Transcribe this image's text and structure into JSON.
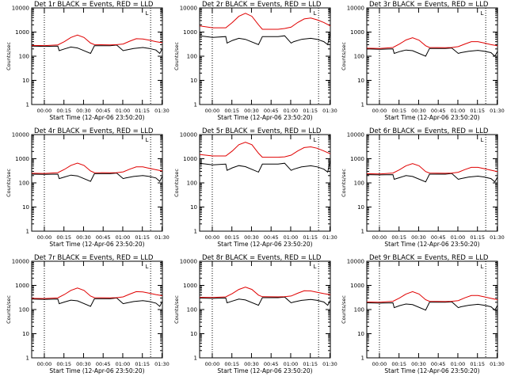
{
  "colors": {
    "events": "#000000",
    "lld": "#e00000",
    "background": "#ffffff"
  },
  "chart_data": [
    {
      "type": "line",
      "title": "Det 1r BLACK = Events, RED = LLD",
      "xlabel": "Start Time (12-Apr-06 23:50:20)",
      "ylabel": "Counts/sec",
      "xticks": [
        "00:00",
        "00:15",
        "00:30",
        "00:45",
        "01:00",
        "01:15",
        "01:30"
      ],
      "yticks": [
        "1",
        "10",
        "100",
        "1000",
        "10000"
      ],
      "yscale": "log",
      "ylim": [
        1,
        10000
      ],
      "xlim_minutes_after_start": [
        0,
        100
      ],
      "marker": "L",
      "series": [
        {
          "name": "Events",
          "x": [
            0,
            10,
            20,
            21,
            25,
            30,
            35,
            45,
            48,
            60,
            65,
            70,
            72,
            78,
            85,
            90,
            95,
            98,
            100
          ],
          "y": [
            260,
            255,
            260,
            170,
            200,
            240,
            220,
            130,
            270,
            270,
            290,
            170,
            180,
            210,
            230,
            210,
            180,
            130,
            210
          ]
        },
        {
          "name": "LLD",
          "x": [
            0,
            10,
            20,
            25,
            30,
            35,
            40,
            45,
            48,
            60,
            65,
            70,
            75,
            80,
            85,
            90,
            95,
            100
          ],
          "y": [
            280,
            275,
            295,
            400,
            600,
            750,
            600,
            350,
            300,
            295,
            300,
            320,
            420,
            530,
            520,
            460,
            400,
            360
          ]
        }
      ]
    },
    {
      "type": "line",
      "title": "Det 2r BLACK = Events, RED = LLD",
      "xlabel": "Start Time (12-Apr-06 23:50:20)",
      "ylabel": "Counts/sec",
      "xticks": [
        "00:00",
        "00:15",
        "00:30",
        "00:45",
        "01:00",
        "01:15",
        "01:30"
      ],
      "yticks": [
        "1",
        "10",
        "100",
        "1000",
        "10000"
      ],
      "yscale": "log",
      "ylim": [
        1,
        10000
      ],
      "xlim_minutes_after_start": [
        0,
        100
      ],
      "marker": "L",
      "series": [
        {
          "name": "Events",
          "x": [
            0,
            10,
            20,
            21,
            25,
            30,
            35,
            45,
            48,
            60,
            65,
            70,
            72,
            78,
            85,
            90,
            95,
            98,
            100
          ],
          "y": [
            700,
            600,
            650,
            350,
            450,
            550,
            500,
            300,
            650,
            650,
            700,
            350,
            400,
            500,
            550,
            500,
            400,
            300,
            1000
          ]
        },
        {
          "name": "LLD",
          "x": [
            0,
            10,
            20,
            25,
            30,
            35,
            40,
            45,
            48,
            60,
            65,
            70,
            75,
            80,
            85,
            90,
            95,
            100
          ],
          "y": [
            1800,
            1500,
            1500,
            2500,
            4500,
            6000,
            4500,
            2000,
            1300,
            1300,
            1400,
            1600,
            2500,
            3500,
            3800,
            3200,
            2500,
            1800
          ]
        }
      ]
    },
    {
      "type": "line",
      "title": "Det 3r BLACK = Events, RED = LLD",
      "xlabel": "Start Time (12-Apr-06 23:50:20)",
      "ylabel": "Counts/sec",
      "xticks": [
        "00:00",
        "00:15",
        "00:30",
        "00:45",
        "01:00",
        "01:15",
        "01:30"
      ],
      "yticks": [
        "1",
        "10",
        "100",
        "1000",
        "10000"
      ],
      "yscale": "log",
      "ylim": [
        1,
        10000
      ],
      "xlim_minutes_after_start": [
        0,
        100
      ],
      "marker": "L",
      "series": [
        {
          "name": "Events",
          "x": [
            0,
            10,
            20,
            21,
            25,
            30,
            35,
            45,
            48,
            60,
            65,
            70,
            72,
            78,
            85,
            90,
            95,
            98,
            100
          ],
          "y": [
            200,
            195,
            200,
            130,
            155,
            180,
            170,
            100,
            210,
            210,
            220,
            130,
            140,
            160,
            175,
            160,
            140,
            100,
            160
          ]
        },
        {
          "name": "LLD",
          "x": [
            0,
            10,
            20,
            25,
            30,
            35,
            40,
            45,
            48,
            60,
            65,
            70,
            75,
            80,
            85,
            90,
            95,
            100
          ],
          "y": [
            215,
            210,
            230,
            320,
            470,
            580,
            460,
            270,
            230,
            225,
            230,
            250,
            320,
            400,
            400,
            350,
            300,
            270
          ]
        }
      ]
    },
    {
      "type": "line",
      "title": "Det 4r BLACK = Events, RED = LLD",
      "xlabel": "Start Time (12-Apr-06 23:50:20)",
      "ylabel": "Counts/sec",
      "xticks": [
        "00:00",
        "00:15",
        "00:30",
        "00:45",
        "01:00",
        "01:15",
        "01:30"
      ],
      "yticks": [
        "1",
        "10",
        "100",
        "1000",
        "10000"
      ],
      "yscale": "log",
      "ylim": [
        1,
        10000
      ],
      "xlim_minutes_after_start": [
        0,
        100
      ],
      "marker": "L",
      "series": [
        {
          "name": "Events",
          "x": [
            0,
            10,
            20,
            21,
            25,
            30,
            35,
            45,
            48,
            60,
            65,
            70,
            72,
            78,
            85,
            90,
            95,
            98,
            100
          ],
          "y": [
            230,
            225,
            230,
            150,
            175,
            210,
            195,
            115,
            240,
            240,
            255,
            150,
            160,
            185,
            200,
            185,
            160,
            115,
            190
          ]
        },
        {
          "name": "LLD",
          "x": [
            0,
            10,
            20,
            25,
            30,
            35,
            40,
            45,
            48,
            60,
            65,
            70,
            75,
            80,
            85,
            90,
            95,
            100
          ],
          "y": [
            250,
            245,
            265,
            360,
            530,
            660,
            530,
            310,
            265,
            260,
            265,
            285,
            370,
            460,
            460,
            400,
            350,
            310
          ]
        }
      ]
    },
    {
      "type": "line",
      "title": "Det 5r BLACK = Events, RED = LLD",
      "xlabel": "Start Time (12-Apr-06 23:50:20)",
      "ylabel": "Counts/sec",
      "xticks": [
        "00:00",
        "00:15",
        "00:30",
        "00:45",
        "01:00",
        "01:15",
        "01:30"
      ],
      "yticks": [
        "1",
        "10",
        "100",
        "1000",
        "10000"
      ],
      "yscale": "log",
      "ylim": [
        1,
        10000
      ],
      "xlim_minutes_after_start": [
        0,
        100
      ],
      "marker": "L",
      "series": [
        {
          "name": "Events",
          "x": [
            0,
            10,
            20,
            21,
            25,
            30,
            35,
            45,
            48,
            60,
            65,
            70,
            72,
            78,
            85,
            90,
            95,
            98,
            100
          ],
          "y": [
            650,
            560,
            600,
            330,
            420,
            520,
            470,
            280,
            600,
            600,
            650,
            330,
            370,
            460,
            510,
            460,
            370,
            280,
            900
          ]
        },
        {
          "name": "LLD",
          "x": [
            0,
            10,
            20,
            25,
            30,
            35,
            40,
            45,
            48,
            60,
            65,
            70,
            75,
            80,
            85,
            90,
            95,
            100
          ],
          "y": [
            1500,
            1300,
            1300,
            2100,
            3800,
            4800,
            3800,
            1700,
            1150,
            1150,
            1200,
            1400,
            2100,
            2900,
            3100,
            2700,
            2100,
            1600
          ]
        }
      ]
    },
    {
      "type": "line",
      "title": "Det 6r BLACK = Events, RED = LLD",
      "xlabel": "Start Time (12-Apr-06 23:50:20)",
      "ylabel": "Counts/sec",
      "xticks": [
        "00:00",
        "00:15",
        "00:30",
        "00:45",
        "01:00",
        "01:15",
        "01:30"
      ],
      "yticks": [
        "1",
        "10",
        "100",
        "1000",
        "10000"
      ],
      "yscale": "log",
      "ylim": [
        1,
        10000
      ],
      "xlim_minutes_after_start": [
        0,
        100
      ],
      "marker": "L",
      "series": [
        {
          "name": "Events",
          "x": [
            0,
            10,
            20,
            21,
            25,
            30,
            35,
            45,
            48,
            60,
            65,
            70,
            72,
            78,
            85,
            90,
            95,
            98,
            100
          ],
          "y": [
            220,
            215,
            220,
            140,
            165,
            200,
            185,
            110,
            230,
            230,
            245,
            140,
            150,
            175,
            190,
            175,
            150,
            110,
            175
          ]
        },
        {
          "name": "LLD",
          "x": [
            0,
            10,
            20,
            25,
            30,
            35,
            40,
            45,
            48,
            60,
            65,
            70,
            75,
            80,
            85,
            90,
            95,
            100
          ],
          "y": [
            240,
            235,
            255,
            350,
            510,
            630,
            510,
            295,
            255,
            250,
            255,
            275,
            355,
            440,
            440,
            385,
            335,
            295
          ]
        }
      ]
    },
    {
      "type": "line",
      "title": "Det 7r BLACK = Events, RED = LLD",
      "xlabel": "Start Time (12-Apr-06 23:50:20)",
      "ylabel": "Counts/sec",
      "xticks": [
        "00:00",
        "00:15",
        "00:30",
        "00:45",
        "01:00",
        "01:15",
        "01:30"
      ],
      "yticks": [
        "1",
        "10",
        "100",
        "1000",
        "10000"
      ],
      "yscale": "log",
      "ylim": [
        1,
        10000
      ],
      "xlim_minutes_after_start": [
        0,
        100
      ],
      "marker": "L",
      "series": [
        {
          "name": "Events",
          "x": [
            0,
            10,
            20,
            21,
            25,
            30,
            35,
            45,
            48,
            60,
            65,
            70,
            72,
            78,
            85,
            90,
            95,
            98,
            100
          ],
          "y": [
            270,
            265,
            270,
            175,
            205,
            245,
            230,
            135,
            280,
            280,
            300,
            175,
            185,
            215,
            235,
            215,
            185,
            135,
            220
          ]
        },
        {
          "name": "LLD",
          "x": [
            0,
            10,
            20,
            25,
            30,
            35,
            40,
            45,
            48,
            60,
            65,
            70,
            75,
            80,
            85,
            90,
            95,
            100
          ],
          "y": [
            290,
            285,
            305,
            420,
            620,
            780,
            620,
            360,
            310,
            305,
            310,
            335,
            435,
            550,
            540,
            475,
            415,
            375
          ]
        }
      ]
    },
    {
      "type": "line",
      "title": "Det 8r BLACK = Events, RED = LLD",
      "xlabel": "Start Time (12-Apr-06 23:50:20)",
      "ylabel": "Counts/sec",
      "xticks": [
        "00:00",
        "00:15",
        "00:30",
        "00:45",
        "01:00",
        "01:15",
        "01:30"
      ],
      "yticks": [
        "1",
        "10",
        "100",
        "1000",
        "10000"
      ],
      "yscale": "log",
      "ylim": [
        1,
        10000
      ],
      "xlim_minutes_after_start": [
        0,
        100
      ],
      "marker": "L",
      "series": [
        {
          "name": "Events",
          "x": [
            0,
            10,
            20,
            21,
            25,
            30,
            35,
            45,
            48,
            60,
            65,
            70,
            72,
            78,
            85,
            90,
            95,
            98,
            100
          ],
          "y": [
            300,
            290,
            300,
            190,
            225,
            270,
            250,
            150,
            310,
            310,
            330,
            190,
            205,
            240,
            260,
            240,
            205,
            150,
            240
          ]
        },
        {
          "name": "LLD",
          "x": [
            0,
            10,
            20,
            25,
            30,
            35,
            40,
            45,
            48,
            60,
            65,
            70,
            75,
            80,
            85,
            90,
            95,
            100
          ],
          "y": [
            320,
            315,
            335,
            460,
            680,
            850,
            680,
            395,
            340,
            335,
            340,
            365,
            475,
            600,
            590,
            520,
            455,
            410
          ]
        }
      ]
    },
    {
      "type": "line",
      "title": "Det 9r BLACK = Events, RED = LLD",
      "xlabel": "Start Time (12-Apr-06 23:50:20)",
      "ylabel": "Counts/sec",
      "xticks": [
        "00:00",
        "00:15",
        "00:30",
        "00:45",
        "01:00",
        "01:15",
        "01:30"
      ],
      "yticks": [
        "1",
        "10",
        "100",
        "1000",
        "10000"
      ],
      "yscale": "log",
      "ylim": [
        1,
        10000
      ],
      "xlim_minutes_after_start": [
        0,
        100
      ],
      "marker": "L",
      "series": [
        {
          "name": "Events",
          "x": [
            0,
            10,
            20,
            21,
            25,
            30,
            35,
            45,
            48,
            60,
            65,
            70,
            72,
            78,
            85,
            90,
            95,
            98,
            100
          ],
          "y": [
            190,
            185,
            190,
            120,
            145,
            170,
            160,
            95,
            200,
            200,
            210,
            120,
            130,
            150,
            165,
            150,
            130,
            95,
            150
          ]
        },
        {
          "name": "LLD",
          "x": [
            0,
            10,
            20,
            25,
            30,
            35,
            40,
            45,
            48,
            60,
            65,
            70,
            75,
            80,
            85,
            90,
            95,
            100
          ],
          "y": [
            205,
            200,
            220,
            300,
            440,
            550,
            440,
            255,
            220,
            215,
            220,
            235,
            305,
            380,
            380,
            335,
            290,
            255
          ]
        }
      ]
    }
  ]
}
